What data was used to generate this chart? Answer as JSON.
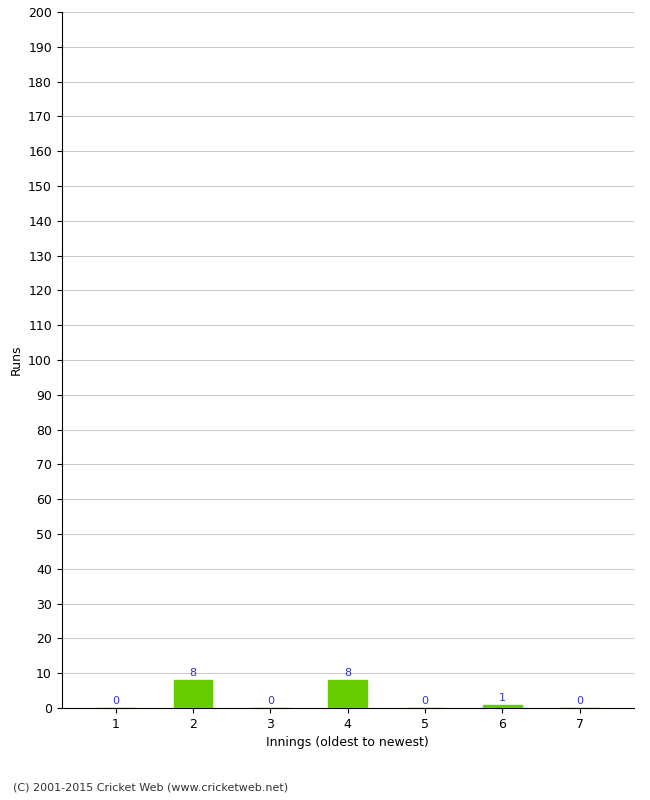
{
  "innings": [
    1,
    2,
    3,
    4,
    5,
    6,
    7
  ],
  "runs": [
    0,
    8,
    0,
    8,
    0,
    1,
    0
  ],
  "bar_color": "#66cc00",
  "label_color": "#3333cc",
  "xlabel": "Innings (oldest to newest)",
  "ylabel": "Runs",
  "ylim": [
    0,
    200
  ],
  "yticks": [
    0,
    10,
    20,
    30,
    40,
    50,
    60,
    70,
    80,
    90,
    100,
    110,
    120,
    130,
    140,
    150,
    160,
    170,
    180,
    190,
    200
  ],
  "footer": "(C) 2001-2015 Cricket Web (www.cricketweb.net)",
  "background_color": "#ffffff",
  "grid_color": "#cccccc",
  "bar_width": 0.5
}
